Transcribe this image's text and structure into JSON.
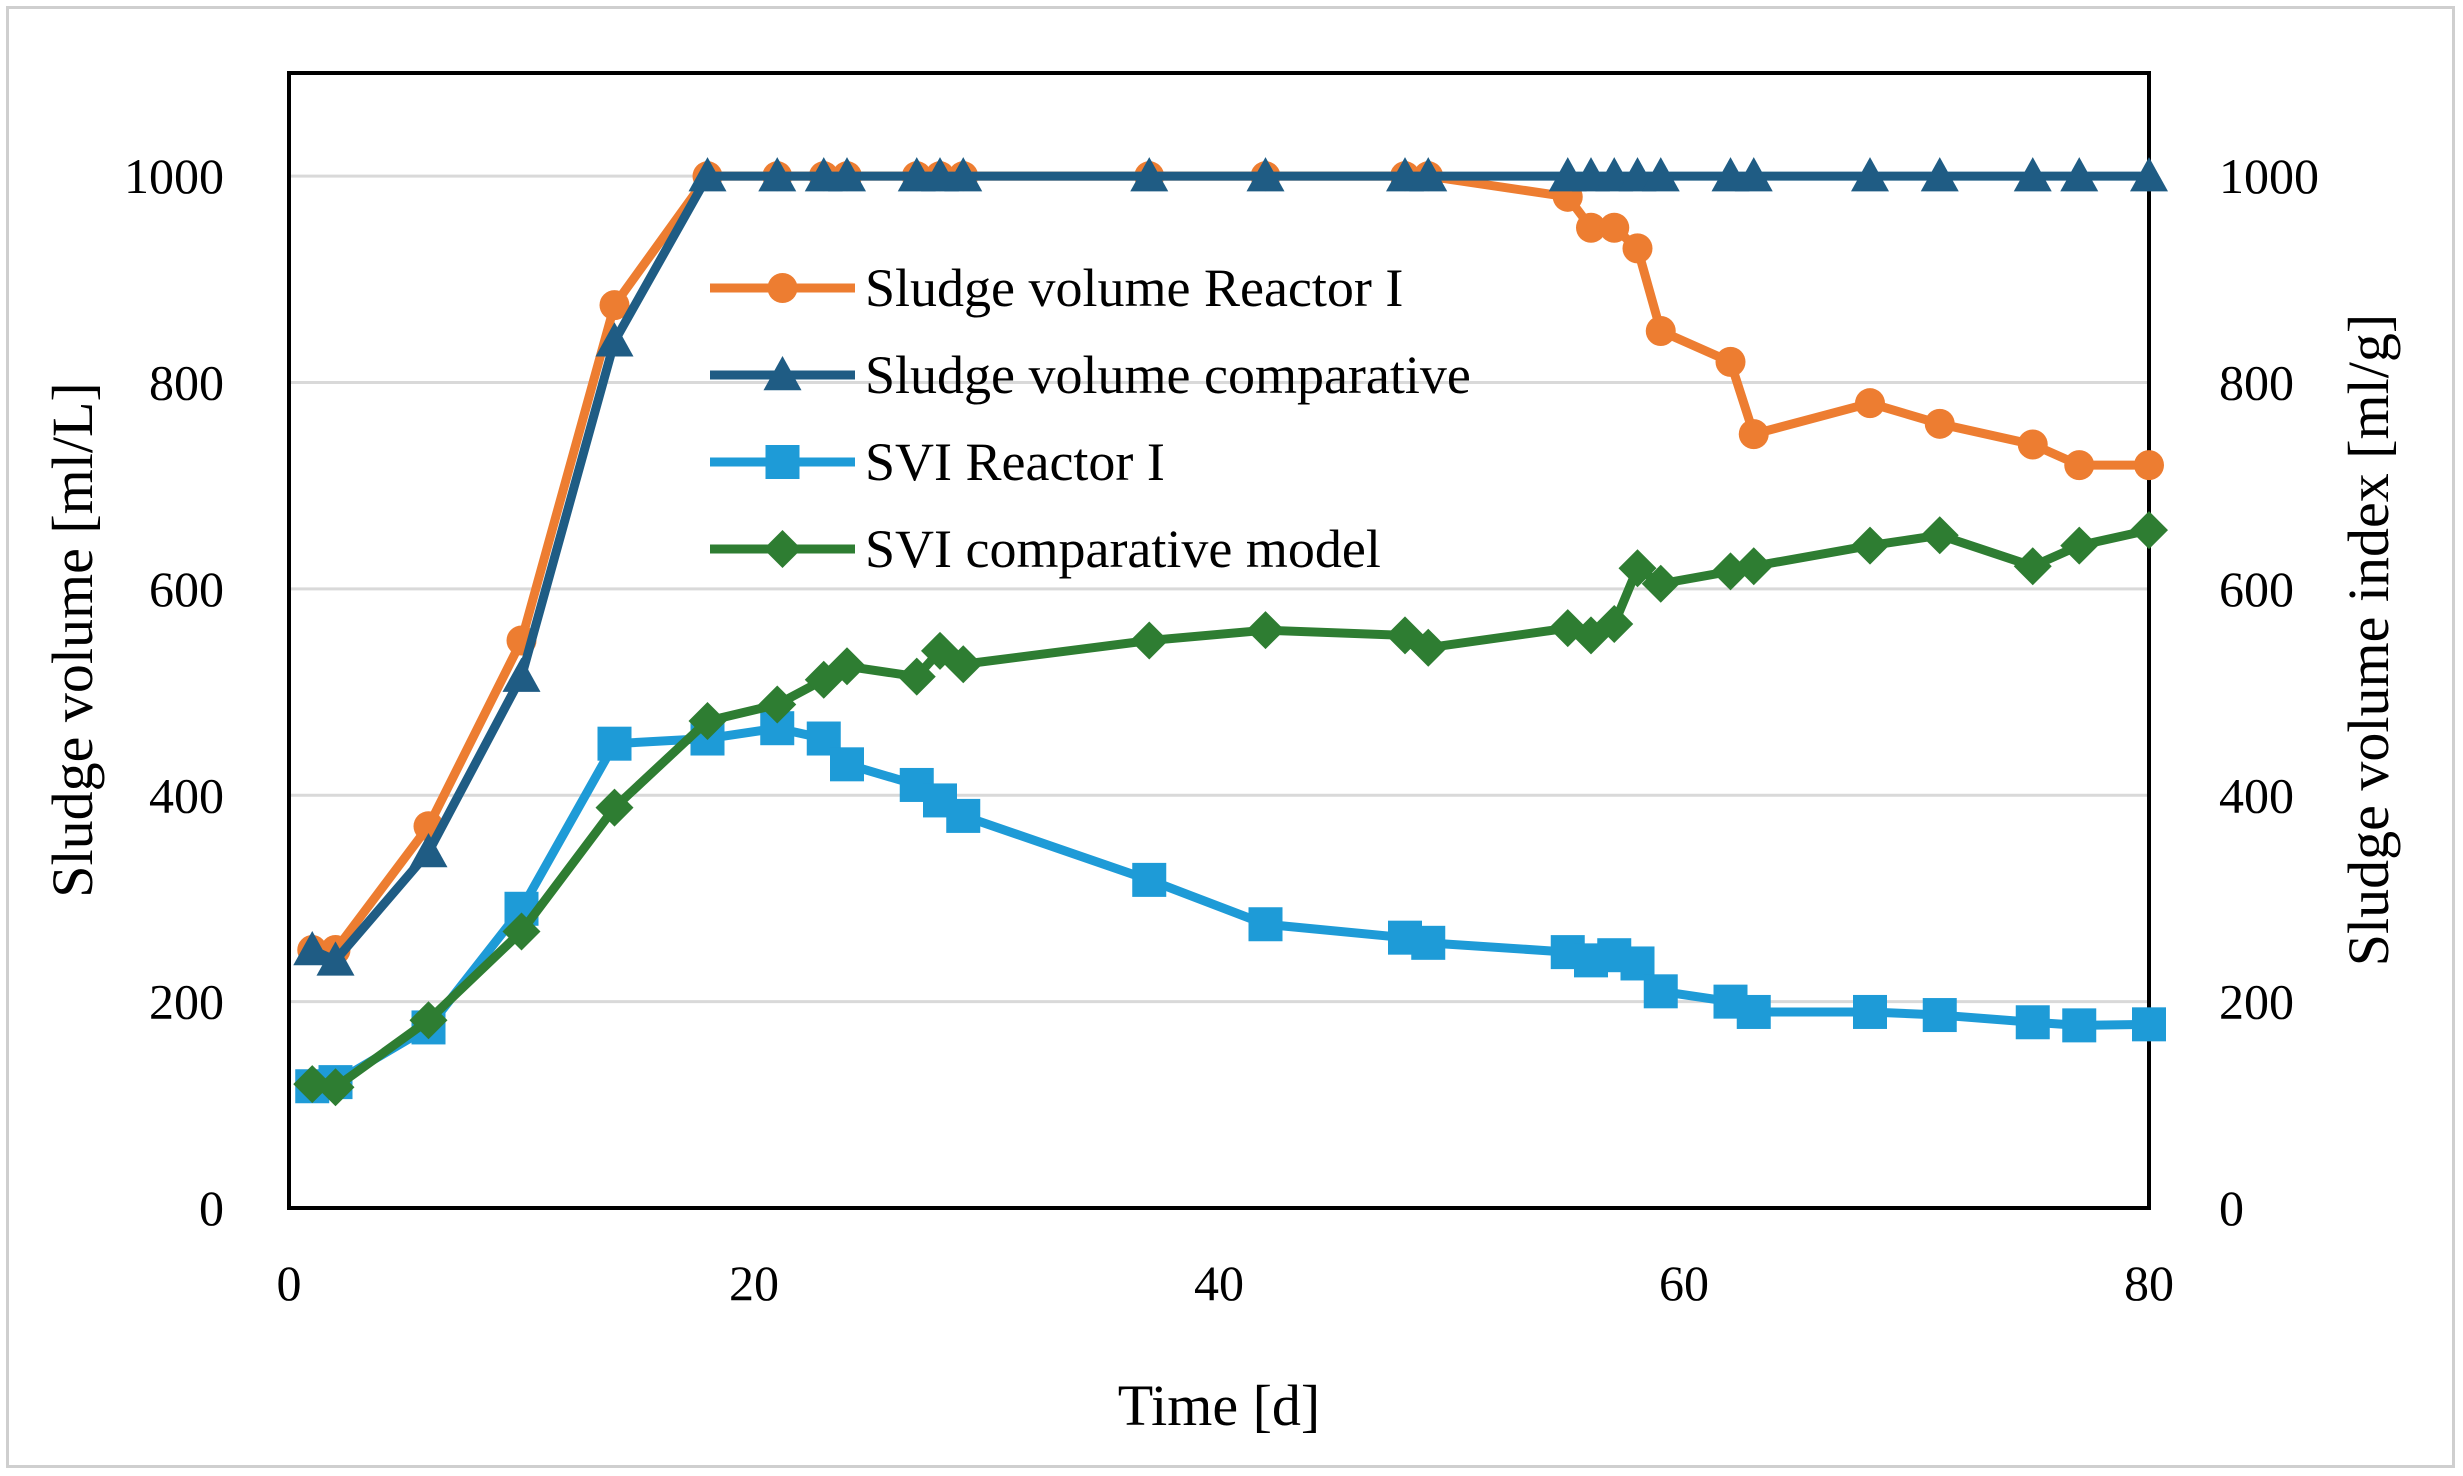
{
  "chart_data": {
    "type": "line",
    "xlabel": "Time [d]",
    "ylabel": "Sludge volume [ml/L]",
    "y2label": "Sludge volume index [ml/g]",
    "xlim": [
      0,
      80
    ],
    "ylim": [
      0,
      1100
    ],
    "y2lim": [
      0,
      1100
    ],
    "xticks": [
      "0",
      "20",
      "40",
      "60",
      "80"
    ],
    "yticks": [
      "0",
      "200",
      "400",
      "600",
      "800",
      "1000"
    ],
    "y2ticks": [
      "0",
      "200",
      "400",
      "600",
      "800",
      "1000"
    ],
    "grid": true,
    "legend_position": "top-center",
    "series": [
      {
        "name": "Sludge volume Reactor I",
        "axis": "left",
        "color": "#ED7D31",
        "marker": "circle",
        "x": [
          1,
          2,
          6,
          10,
          14,
          18,
          21,
          23,
          24,
          27,
          28,
          29,
          37,
          42,
          48,
          49,
          55,
          56,
          57,
          58,
          59,
          62,
          63,
          68,
          71,
          75,
          77,
          80
        ],
        "y": [
          250,
          250,
          370,
          550,
          875,
          1000,
          1000,
          1000,
          1000,
          1000,
          1000,
          1000,
          1000,
          1000,
          1000,
          1000,
          980,
          950,
          950,
          930,
          850,
          820,
          750,
          780,
          760,
          740,
          720,
          720
        ]
      },
      {
        "name": "Sludge volume comparative",
        "axis": "left",
        "color": "#1F5C84",
        "marker": "triangle",
        "x": [
          1,
          2,
          6,
          10,
          14,
          18,
          21,
          23,
          24,
          27,
          28,
          29,
          37,
          42,
          48,
          49,
          55,
          56,
          57,
          58,
          59,
          62,
          63,
          68,
          71,
          75,
          77,
          80
        ],
        "y": [
          250,
          240,
          345,
          515,
          840,
          1000,
          1000,
          1000,
          1000,
          1000,
          1000,
          1000,
          1000,
          1000,
          1000,
          1000,
          1000,
          1000,
          1000,
          1000,
          1000,
          1000,
          1000,
          1000,
          1000,
          1000,
          1000,
          1000
        ]
      },
      {
        "name": "SVI Reactor I",
        "axis": "right",
        "color": "#1E9BD7",
        "marker": "square",
        "x": [
          1,
          2,
          6,
          10,
          14,
          18,
          21,
          23,
          24,
          27,
          28,
          29,
          37,
          42,
          48,
          49,
          55,
          56,
          57,
          58,
          59,
          62,
          63,
          68,
          71,
          75,
          77,
          80
        ],
        "y": [
          118,
          122,
          175,
          290,
          450,
          455,
          465,
          455,
          430,
          410,
          395,
          380,
          318,
          275,
          262,
          257,
          248,
          240,
          245,
          237,
          210,
          200,
          190,
          190,
          187,
          180,
          177,
          178
        ]
      },
      {
        "name": "SVI comparative model",
        "axis": "right",
        "color": "#2E7D32",
        "marker": "diamond",
        "x": [
          1,
          2,
          6,
          10,
          14,
          18,
          21,
          23,
          24,
          27,
          28,
          29,
          37,
          42,
          48,
          49,
          55,
          56,
          57,
          58,
          59,
          62,
          63,
          68,
          71,
          75,
          77,
          80
        ],
        "y": [
          120,
          117,
          182,
          268,
          388,
          472,
          488,
          512,
          525,
          515,
          540,
          527,
          550,
          560,
          555,
          543,
          562,
          555,
          566,
          620,
          605,
          617,
          622,
          642,
          652,
          622,
          642,
          657
        ]
      }
    ]
  }
}
